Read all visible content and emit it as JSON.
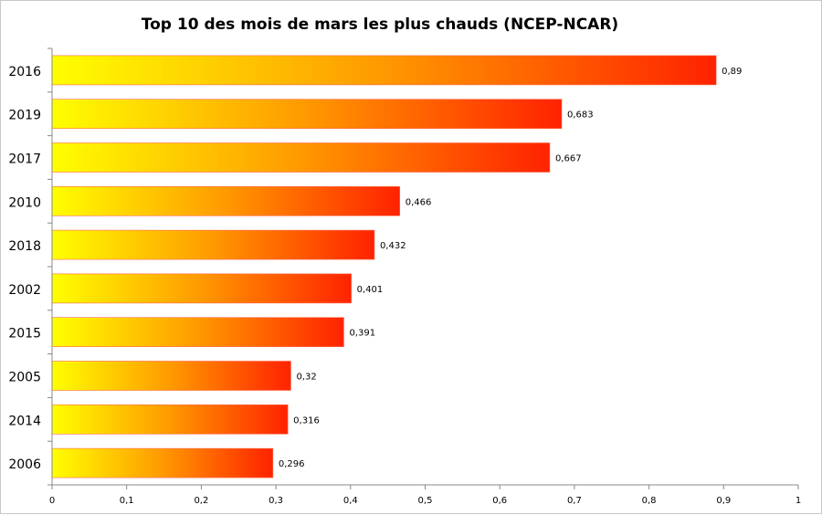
{
  "chart_data": {
    "type": "bar",
    "orientation": "horizontal",
    "title": "Top 10 des mois de mars les plus chauds (NCEP-NCAR)",
    "categories": [
      "2016",
      "2019",
      "2017",
      "2010",
      "2018",
      "2002",
      "2015",
      "2005",
      "2014",
      "2006"
    ],
    "values": [
      0.89,
      0.683,
      0.667,
      0.466,
      0.432,
      0.401,
      0.391,
      0.32,
      0.316,
      0.296
    ],
    "data_labels": [
      "0,89",
      "0,683",
      "0,667",
      "0,466",
      "0,432",
      "0,401",
      "0,391",
      "0,32",
      "0,316",
      "0,296"
    ],
    "xlim": [
      0,
      1
    ],
    "xticks": [
      0,
      0.1,
      0.2,
      0.3,
      0.4,
      0.5,
      0.6,
      0.7,
      0.8,
      0.9,
      1
    ],
    "xtick_labels": [
      "0",
      "0,1",
      "0,2",
      "0,3",
      "0,4",
      "0,5",
      "0,6",
      "0,7",
      "0,8",
      "0,9",
      "1"
    ],
    "grid": false,
    "legend": "none",
    "colors": {
      "gradient_start": "#ffff00",
      "gradient_mid": "#ff9900",
      "gradient_end": "#ff2200"
    }
  }
}
